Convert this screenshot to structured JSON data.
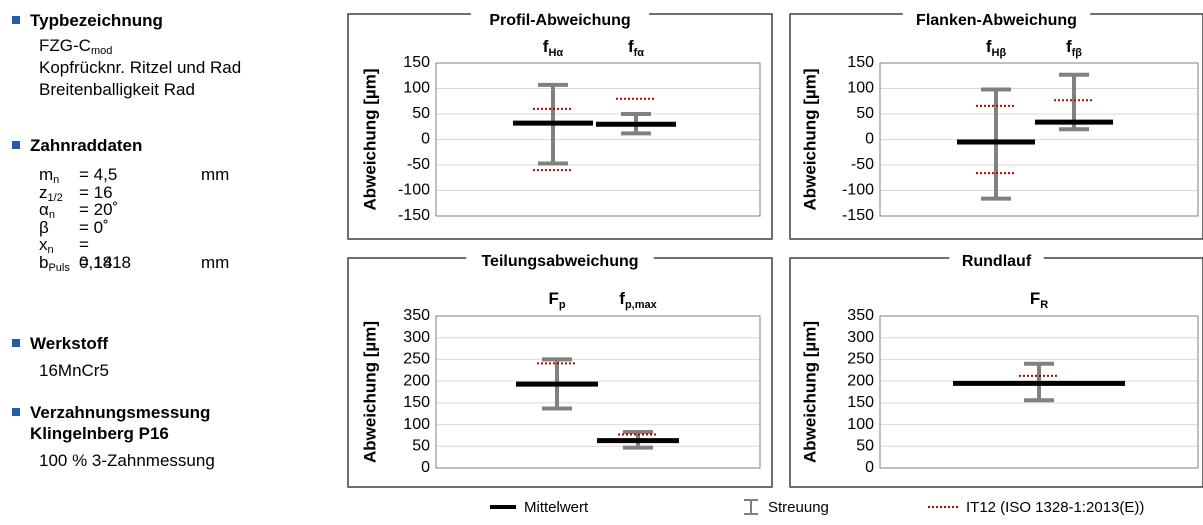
{
  "info": {
    "typ": {
      "heading": "Typbezeichnung",
      "designation_main": "FZG-C",
      "designation_sub": "mod",
      "lines": [
        "Kopfrücknr. Ritzel und Rad",
        "Breitenballigkeit Rad"
      ]
    },
    "zahnrad": {
      "heading": "Zahnraddaten",
      "params": [
        {
          "sym": "m",
          "sub": "n",
          "val": "= 4,5",
          "unit": "mm"
        },
        {
          "sym": "z",
          "sub": "1/2",
          "val": "= 16",
          "unit": ""
        },
        {
          "sym": "α",
          "sub": "n",
          "val": "= 20˚",
          "unit": ""
        },
        {
          "sym": "β",
          "sub": "",
          "val": "= 0˚",
          "unit": ""
        },
        {
          "sym": "x",
          "sub": "n",
          "val": "= 0,1818",
          "unit": ""
        },
        {
          "sym": "b",
          "sub": "Puls",
          "val": "= 14",
          "unit": "mm"
        }
      ]
    },
    "werkstoff": {
      "heading": "Werkstoff",
      "value": "16MnCr5"
    },
    "messung": {
      "heading_line1": "Verzahnungsmessung",
      "heading_line2": "Klingelnberg P16",
      "value": "100 % 3-Zahnmessung"
    }
  },
  "legend": {
    "mean": "Mittelwert",
    "spread": "Streuung",
    "tolerance": "IT12 (ISO 1328-1:2013(E))"
  },
  "colors": {
    "mean": "#000000",
    "spread": "#808080",
    "tolerance": "#c00000",
    "grid": "#d9d9d9",
    "frame": "#7f7f7f",
    "bullet": "#1f5fa8"
  },
  "chart_data": [
    {
      "type": "box",
      "title": "Profil-Abweichung",
      "ylabel": "Abweichung [µm]",
      "ylim": [
        -150,
        150
      ],
      "yticks": [
        150,
        100,
        50,
        0,
        -50,
        -100,
        -150
      ],
      "series": [
        {
          "label_main": "f",
          "label_sub": "Hα",
          "mean": 32,
          "min": -47,
          "max": 107,
          "tol_upper": 60,
          "tol_lower": -60
        },
        {
          "label_main": "f",
          "label_sub": "fα",
          "mean": 30,
          "min": 12,
          "max": 50,
          "tol_upper": 80,
          "tol_lower": null
        }
      ]
    },
    {
      "type": "box",
      "title": "Flanken-Abweichung",
      "ylabel": "Abweichung [µm]",
      "ylim": [
        -150,
        150
      ],
      "yticks": [
        150,
        100,
        50,
        0,
        -50,
        -100,
        -150
      ],
      "series": [
        {
          "label_main": "f",
          "label_sub": "Hβ",
          "mean": -5,
          "min": -116,
          "max": 98,
          "tol_upper": 66,
          "tol_lower": -66
        },
        {
          "label_main": "f",
          "label_sub": "fβ",
          "mean": 34,
          "min": 20,
          "max": 127,
          "tol_upper": 77,
          "tol_lower": null
        }
      ]
    },
    {
      "type": "box",
      "title": "Teilungsabweichung",
      "ylabel": "Abweichung [µm]",
      "ylim": [
        0,
        350
      ],
      "yticks": [
        350,
        300,
        250,
        200,
        150,
        100,
        50,
        0
      ],
      "series": [
        {
          "label_main": "F",
          "label_sub": "p",
          "mean": 193,
          "min": 137,
          "max": 250,
          "tol_upper": 241,
          "tol_lower": null
        },
        {
          "label_main": "f",
          "label_sub": "p,max",
          "mean": 63,
          "min": 47,
          "max": 83,
          "tol_upper": 77,
          "tol_lower": null
        }
      ]
    },
    {
      "type": "box",
      "title": "Rundlauf",
      "ylabel": "Abweichung [µm]",
      "ylim": [
        0,
        350
      ],
      "yticks": [
        350,
        300,
        250,
        200,
        150,
        100,
        50,
        0
      ],
      "series": [
        {
          "label_main": "F",
          "label_sub": "R",
          "mean": 195,
          "min": 156,
          "max": 240,
          "tol_upper": 212,
          "tol_lower": null
        }
      ]
    }
  ]
}
